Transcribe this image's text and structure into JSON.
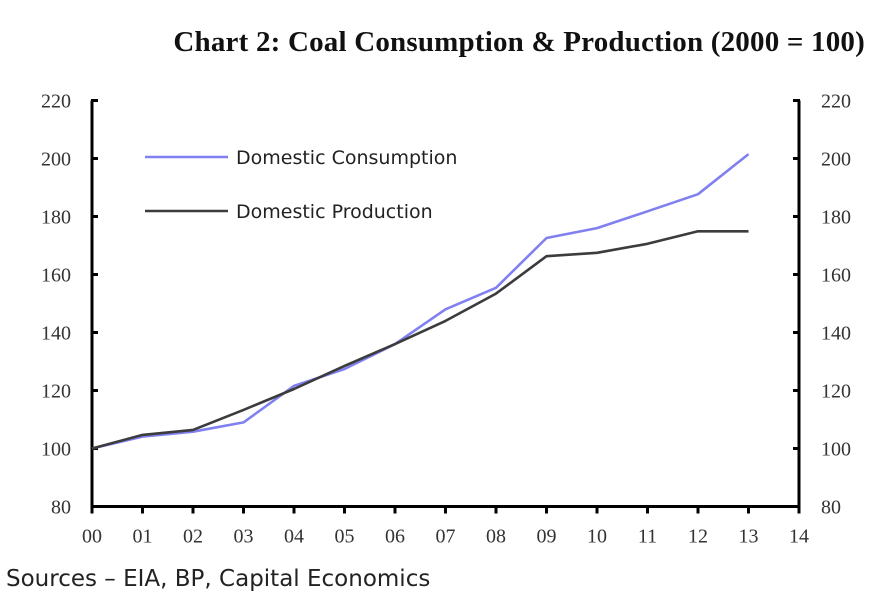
{
  "chart_data": {
    "type": "line",
    "title": "Chart 2: Coal Consumption & Production (2000 = 100)",
    "xlabel": "",
    "ylabel": "",
    "x": [
      "00",
      "01",
      "02",
      "03",
      "04",
      "05",
      "06",
      "07",
      "08",
      "09",
      "10",
      "11",
      "12",
      "13"
    ],
    "x_ticks": [
      "00",
      "01",
      "02",
      "03",
      "04",
      "05",
      "06",
      "07",
      "08",
      "09",
      "10",
      "11",
      "12",
      "13",
      "14"
    ],
    "xlim": [
      0,
      14
    ],
    "ylim": [
      80,
      220
    ],
    "y_ticks": [
      80,
      100,
      120,
      140,
      160,
      180,
      200,
      220
    ],
    "y_ticks_right": [
      80,
      100,
      120,
      140,
      160,
      180,
      200,
      220
    ],
    "grid": false,
    "legend_position": "top-left",
    "series": [
      {
        "name": "Domestic Consumption",
        "color": "#8080f0",
        "values": [
          100,
          104.1,
          105.8,
          109,
          121.6,
          127.4,
          136,
          148,
          155.4,
          172.6,
          176,
          181.8,
          187.7,
          201.5
        ]
      },
      {
        "name": "Domestic Production",
        "color": "#3c3c3c",
        "values": [
          100,
          104.7,
          106.4,
          113.3,
          120.5,
          128.5,
          136,
          144,
          153.4,
          166.3,
          167.5,
          170.6,
          174.9,
          174.9
        ]
      }
    ],
    "source": "Sources – EIA, BP, Capital Economics"
  }
}
